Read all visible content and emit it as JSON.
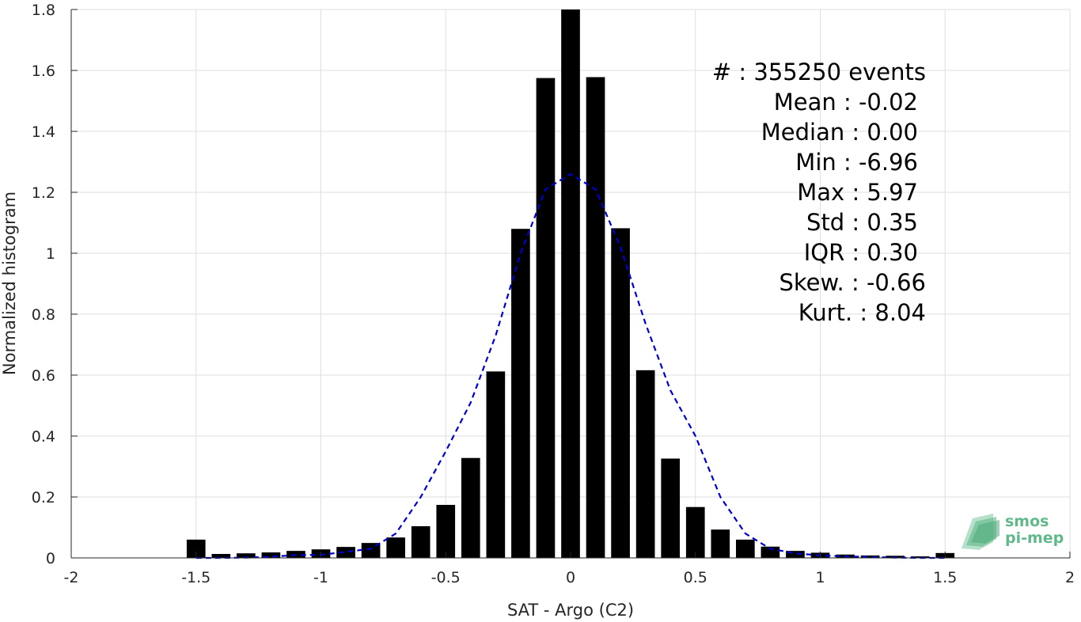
{
  "chart_data": {
    "type": "bar",
    "xlabel": "SAT - Argo (C2)",
    "ylabel": "Normalized histogram",
    "xlim": [
      -2,
      2
    ],
    "ylim": [
      0,
      1.8
    ],
    "x_ticks": [
      -2,
      -1.5,
      -1,
      -0.5,
      0,
      0.5,
      1,
      1.5,
      2
    ],
    "x_tick_labels": [
      "-2",
      "-1.5",
      "-1",
      "-0.5",
      "0",
      "0.5",
      "1",
      "1.5",
      "2"
    ],
    "y_ticks": [
      0,
      0.2,
      0.4,
      0.6,
      0.8,
      1,
      1.2,
      1.4,
      1.6,
      1.8
    ],
    "y_tick_labels": [
      "0",
      "0.2",
      "0.4",
      "0.6",
      "0.8",
      "1",
      "1.2",
      "1.4",
      "1.6",
      "1.8"
    ],
    "grid": true,
    "bar_color": "#000000",
    "bin_width": 0.1,
    "bins": [
      {
        "x": -1.5,
        "value": 0.06
      },
      {
        "x": -1.4,
        "value": 0.013
      },
      {
        "x": -1.3,
        "value": 0.015
      },
      {
        "x": -1.2,
        "value": 0.018
      },
      {
        "x": -1.1,
        "value": 0.023
      },
      {
        "x": -1.0,
        "value": 0.028
      },
      {
        "x": -0.9,
        "value": 0.036
      },
      {
        "x": -0.8,
        "value": 0.049
      },
      {
        "x": -0.7,
        "value": 0.067
      },
      {
        "x": -0.6,
        "value": 0.104
      },
      {
        "x": -0.5,
        "value": 0.174
      },
      {
        "x": -0.4,
        "value": 0.328
      },
      {
        "x": -0.3,
        "value": 0.612
      },
      {
        "x": -0.2,
        "value": 1.08
      },
      {
        "x": -0.1,
        "value": 1.575
      },
      {
        "x": 0.0,
        "value": 1.8
      },
      {
        "x": 0.1,
        "value": 1.578
      },
      {
        "x": 0.2,
        "value": 1.082
      },
      {
        "x": 0.3,
        "value": 0.616
      },
      {
        "x": 0.4,
        "value": 0.326
      },
      {
        "x": 0.5,
        "value": 0.167
      },
      {
        "x": 0.6,
        "value": 0.093
      },
      {
        "x": 0.7,
        "value": 0.06
      },
      {
        "x": 0.8,
        "value": 0.037
      },
      {
        "x": 0.9,
        "value": 0.023
      },
      {
        "x": 1.0,
        "value": 0.017
      },
      {
        "x": 1.1,
        "value": 0.011
      },
      {
        "x": 1.2,
        "value": 0.008
      },
      {
        "x": 1.3,
        "value": 0.007
      },
      {
        "x": 1.4,
        "value": 0.005
      },
      {
        "x": 1.5,
        "value": 0.016
      }
    ],
    "fit_curve": {
      "color": "#0000cc",
      "style": "dashed",
      "x": [
        -1.5,
        -1.4,
        -1.3,
        -1.2,
        -1.1,
        -1.0,
        -0.9,
        -0.8,
        -0.7,
        -0.6,
        -0.5,
        -0.4,
        -0.3,
        -0.2,
        -0.1,
        0.0,
        0.1,
        0.2,
        0.3,
        0.4,
        0.5,
        0.6,
        0.7,
        0.8,
        0.9,
        1.0,
        1.1,
        1.2,
        1.3,
        1.4,
        1.5
      ],
      "y": [
        0.0,
        0.0,
        0.001,
        0.004,
        0.009,
        0.01,
        0.02,
        0.03,
        0.08,
        0.2,
        0.35,
        0.51,
        0.73,
        1.0,
        1.21,
        1.26,
        1.21,
        1.02,
        0.77,
        0.55,
        0.4,
        0.2,
        0.08,
        0.03,
        0.015,
        0.008,
        0.005,
        0.003,
        0.001,
        0.0,
        0.0
      ]
    },
    "annotations": {
      "stats": [
        "#  : 355250 events",
        "Mean : -0.02",
        "Median : 0.00",
        "Min : -6.96",
        "Max : 5.97",
        "Std : 0.35",
        "IQR : 0.30",
        "Skew. : -0.66",
        "Kurt. : 8.04"
      ]
    }
  },
  "logo": {
    "line1": "smos",
    "line2": "pi-mep",
    "color": "#5fb98a"
  }
}
